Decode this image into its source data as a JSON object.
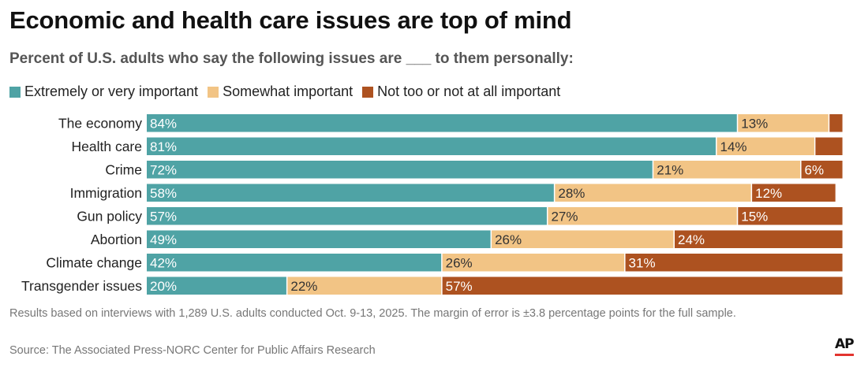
{
  "header": {
    "title": "Economic and health care issues are top of mind",
    "subtitle": "Percent of U.S. adults who say the following issues are ___ to them personally:"
  },
  "legend": [
    {
      "label": "Extremely or very important",
      "color": "#4fa3a5"
    },
    {
      "label": "Somewhat important",
      "color": "#f2c485"
    },
    {
      "label": "Not too or not at all important",
      "color": "#ad5220"
    }
  ],
  "chart_data": {
    "type": "bar",
    "orientation": "horizontal",
    "stacked": true,
    "categories": [
      "The economy",
      "Health care",
      "Crime",
      "Immigration",
      "Gun policy",
      "Abortion",
      "Climate change",
      "Transgender issues"
    ],
    "series": [
      {
        "name": "Extremely or very important",
        "color": "#4fa3a5",
        "values": [
          84,
          81,
          72,
          58,
          57,
          49,
          42,
          20
        ],
        "labels": [
          "84%",
          "81%",
          "72%",
          "58%",
          "57%",
          "49%",
          "42%",
          "20%"
        ]
      },
      {
        "name": "Somewhat important",
        "color": "#f2c485",
        "values": [
          13,
          14,
          21,
          28,
          27,
          26,
          26,
          22
        ],
        "labels": [
          "13%",
          "14%",
          "21%",
          "28%",
          "27%",
          "26%",
          "26%",
          "22%"
        ]
      },
      {
        "name": "Not too or not at all important",
        "color": "#ad5220",
        "values": [
          2,
          4,
          6,
          12,
          15,
          24,
          31,
          57
        ],
        "labels": [
          "",
          "",
          "6%",
          "12%",
          "15%",
          "24%",
          "31%",
          "57%"
        ]
      }
    ],
    "xlim": [
      0,
      100
    ],
    "grid": false,
    "legend_position": "top-left"
  },
  "footer": {
    "note": "Results based on interviews with 1,289 U.S. adults conducted Oct. 9-13, 2025. The margin of error is ±3.8 percentage points for the full sample.",
    "source": "Source: The Associated Press-NORC Center for Public Affairs Research",
    "logo_text": "AP"
  }
}
